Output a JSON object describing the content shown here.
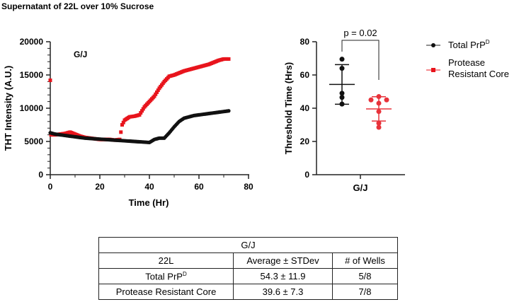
{
  "figure_title": "Supernatant of 22L over 10% Sucrose",
  "chart_data": [
    {
      "type": "scatter",
      "title": "G/J",
      "xlabel": "Time (Hr)",
      "ylabel": "THT Intensity (A.U.)",
      "xlim": [
        0,
        80
      ],
      "ylim": [
        0,
        20000
      ],
      "xticks": [
        "0",
        "20",
        "40",
        "60",
        "80"
      ],
      "yticks": [
        "0",
        "5000",
        "10000",
        "15000",
        "20000"
      ],
      "series": [
        {
          "name": "Total PrP^D",
          "color": "#111111",
          "x": [
            0,
            2,
            4,
            6,
            8,
            10,
            12,
            14,
            16,
            18,
            20,
            22,
            24,
            26,
            28,
            30,
            32,
            34,
            36,
            38,
            40,
            42,
            44,
            46,
            48,
            50,
            52,
            54,
            56,
            58,
            60,
            62,
            64,
            66,
            68,
            70,
            72
          ],
          "y": [
            6300,
            6100,
            6000,
            5900,
            5800,
            5700,
            5600,
            5500,
            5450,
            5400,
            5350,
            5300,
            5250,
            5200,
            5150,
            5100,
            5050,
            5000,
            4950,
            4900,
            4850,
            5300,
            5500,
            5500,
            6300,
            7200,
            8000,
            8500,
            8700,
            8900,
            9000,
            9100,
            9200,
            9300,
            9400,
            9500,
            9600
          ]
        },
        {
          "name": "Protease Resistant Core",
          "color": "#e8141c",
          "x": [
            0,
            0.3,
            2,
            4,
            6,
            8,
            10,
            12,
            14,
            16,
            18,
            20,
            22,
            24,
            26,
            28,
            29,
            30,
            32,
            34,
            36,
            38,
            40,
            42,
            44,
            46,
            48,
            50,
            52,
            54,
            56,
            58,
            60,
            62,
            64,
            66,
            68,
            70,
            72
          ],
          "y": [
            14200,
            6000,
            6000,
            6100,
            6200,
            6400,
            6100,
            5800,
            5600,
            5500,
            5400,
            5300,
            5300,
            5300,
            5200,
            5300,
            7500,
            8200,
            8700,
            8800,
            9000,
            10200,
            11000,
            11800,
            13000,
            14000,
            14800,
            15000,
            15300,
            15600,
            15800,
            16000,
            16200,
            16400,
            16600,
            16900,
            17200,
            17400,
            17400
          ]
        }
      ]
    },
    {
      "type": "scatter",
      "xlabel": "G/J",
      "ylabel": "Threshold Time (Hrs)",
      "ylim": [
        0,
        80
      ],
      "yticks": [
        "0",
        "20",
        "40",
        "60",
        "80"
      ],
      "annotation": "p = 0.02",
      "legend": [
        "Total PrP",
        "Protease Resistant Core"
      ],
      "legend_superscript": "D",
      "legend_position": "right",
      "series": [
        {
          "name": "Total PrP^D",
          "color": "#111111",
          "values": [
            69.5,
            64,
            49,
            46.5,
            42.5
          ],
          "mean": 54.3,
          "sd": 11.9
        },
        {
          "name": "Protease Resistant Core",
          "color": "#e8323a",
          "values": [
            47,
            45,
            45,
            43,
            38,
            31,
            28.5
          ],
          "mean": 39.6,
          "sd": 7.3
        }
      ]
    }
  ],
  "table": {
    "title": "G/J",
    "headers": [
      "22L",
      "Average ± STDev",
      "# of Wells"
    ],
    "rows": [
      {
        "label": "Total PrP",
        "sup": "D",
        "avg": "54.3 ± 11.9",
        "wells": "5/8"
      },
      {
        "label": "Protease Resistant Core",
        "sup": "",
        "avg": "39.6 ± 7.3",
        "wells": "7/8"
      }
    ]
  }
}
